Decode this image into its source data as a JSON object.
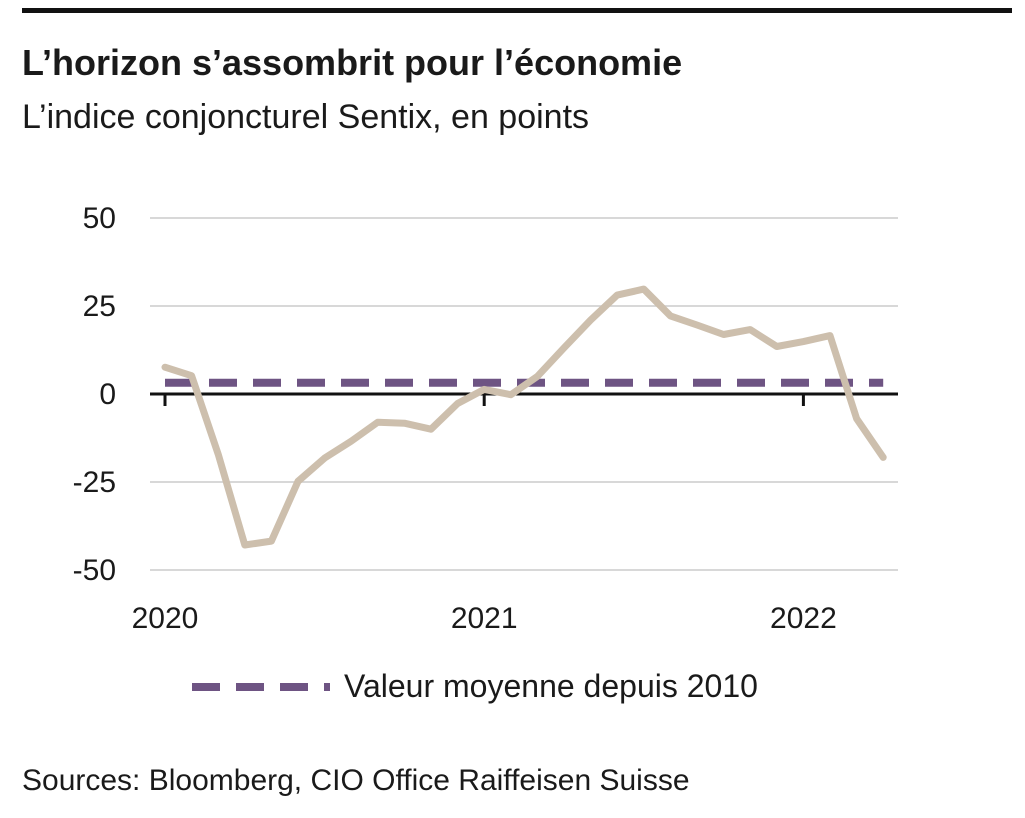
{
  "title": "L’horizon s’assombrit pour l’économie",
  "subtitle": "L’indice conjoncturel Sentix, en points",
  "source": "Sources: Bloomberg, CIO Office Raiffeisen Suisse",
  "colors": {
    "series": "#cdbfad",
    "average": "#6e5483",
    "grid": "#cccccc",
    "axis": "#111111"
  },
  "chart_data": {
    "type": "line",
    "title": "L’horizon s’assombrit pour l’économie",
    "subtitle": "L’indice conjoncturel Sentix, en points",
    "xlabel": "",
    "ylabel": "",
    "ylim": [
      -50,
      50
    ],
    "yticks": [
      50,
      25,
      0,
      -25,
      -50
    ],
    "ytick_labels": [
      "50",
      "25",
      "0",
      "-25",
      "-50"
    ],
    "xlim": [
      "2020-01",
      "2022-04"
    ],
    "xticks": [
      "2020",
      "2021",
      "2022"
    ],
    "grid": true,
    "legend_position": "bottom",
    "series": [
      {
        "name": "",
        "style": "solid",
        "x": [
          "2020-01",
          "2020-02",
          "2020-03",
          "2020-04",
          "2020-05",
          "2020-06",
          "2020-07",
          "2020-08",
          "2020-09",
          "2020-10",
          "2020-11",
          "2020-12",
          "2021-01",
          "2021-02",
          "2021-03",
          "2021-04",
          "2021-05",
          "2021-06",
          "2021-07",
          "2021-08",
          "2021-09",
          "2021-10",
          "2021-11",
          "2021-12",
          "2022-01",
          "2022-02",
          "2022-03",
          "2022-04"
        ],
        "values": [
          7.6,
          5.2,
          -17.1,
          -42.9,
          -41.8,
          -24.8,
          -18.2,
          -13.4,
          -8.0,
          -8.3,
          -10.0,
          -2.7,
          1.3,
          -0.2,
          5.0,
          13.1,
          21.0,
          28.1,
          29.8,
          22.2,
          19.6,
          16.9,
          18.3,
          13.5,
          14.9,
          16.6,
          -7.0,
          -18.0
        ]
      },
      {
        "name": "Valeur moyenne depuis 2010",
        "style": "dashed",
        "x": [
          "2020-01",
          "2022-04"
        ],
        "values": [
          3.2,
          3.2
        ]
      }
    ]
  }
}
